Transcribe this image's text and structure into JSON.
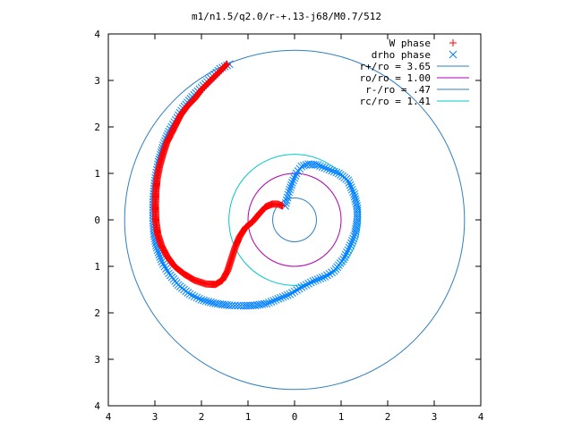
{
  "chart_data": {
    "type": "scatter",
    "title": "m1/n1.5/q2.0/r-+.13-j68/M0.7/512",
    "xlim": [
      -4,
      4
    ],
    "ylim": [
      -4,
      4
    ],
    "xticks": [
      -4,
      -3,
      -2,
      -1,
      0,
      1,
      2,
      3,
      4
    ],
    "yticks": [
      -4,
      -3,
      -2,
      -1,
      0,
      1,
      2,
      3,
      4
    ],
    "xtick_labels": [
      "4",
      "3",
      "2",
      "1",
      "0",
      "1",
      "2",
      "3",
      "4"
    ],
    "ytick_labels": [
      "4",
      "3",
      "2",
      "1",
      "0",
      "1",
      "2",
      "3",
      "4"
    ],
    "grid": false,
    "legend_position": "top-right",
    "series": [
      {
        "name": "W phase",
        "marker": "+",
        "color": "#ff0000",
        "points": [
          [
            -1.45,
            3.35
          ],
          [
            -1.55,
            3.25
          ],
          [
            -1.7,
            3.1
          ],
          [
            -1.85,
            2.95
          ],
          [
            -2.0,
            2.8
          ],
          [
            -2.15,
            2.6
          ],
          [
            -2.3,
            2.45
          ],
          [
            -2.45,
            2.25
          ],
          [
            -2.55,
            2.05
          ],
          [
            -2.65,
            1.85
          ],
          [
            -2.75,
            1.65
          ],
          [
            -2.83,
            1.4
          ],
          [
            -2.9,
            1.15
          ],
          [
            -2.95,
            0.9
          ],
          [
            -2.98,
            0.6
          ],
          [
            -2.99,
            0.3
          ],
          [
            -2.98,
            0.0
          ],
          [
            -2.94,
            -0.3
          ],
          [
            -2.86,
            -0.55
          ],
          [
            -2.74,
            -0.78
          ],
          [
            -2.58,
            -1.0
          ],
          [
            -2.38,
            -1.16
          ],
          [
            -2.15,
            -1.3
          ],
          [
            -1.9,
            -1.38
          ],
          [
            -1.7,
            -1.39
          ],
          [
            -1.55,
            -1.3
          ],
          [
            -1.44,
            -1.1
          ],
          [
            -1.36,
            -0.85
          ],
          [
            -1.28,
            -0.6
          ],
          [
            -1.18,
            -0.36
          ],
          [
            -1.05,
            -0.16
          ],
          [
            -0.9,
            -0.04
          ],
          [
            -0.75,
            0.14
          ],
          [
            -0.62,
            0.28
          ],
          [
            -0.48,
            0.34
          ],
          [
            -0.36,
            0.34
          ],
          [
            -0.26,
            0.3
          ]
        ]
      },
      {
        "name": "drho phase",
        "marker": "x",
        "color": "#0080ff",
        "points": [
          [
            -1.4,
            3.35
          ],
          [
            -1.6,
            3.25
          ],
          [
            -1.8,
            3.05
          ],
          [
            -2.0,
            2.85
          ],
          [
            -2.2,
            2.65
          ],
          [
            -2.4,
            2.4
          ],
          [
            -2.55,
            2.15
          ],
          [
            -2.7,
            1.9
          ],
          [
            -2.82,
            1.6
          ],
          [
            -2.92,
            1.25
          ],
          [
            -2.99,
            0.9
          ],
          [
            -3.03,
            0.5
          ],
          [
            -3.04,
            0.1
          ],
          [
            -3.02,
            -0.3
          ],
          [
            -2.96,
            -0.6
          ],
          [
            -2.85,
            -0.9
          ],
          [
            -2.7,
            -1.15
          ],
          [
            -2.5,
            -1.4
          ],
          [
            -2.25,
            -1.6
          ],
          [
            -2.0,
            -1.72
          ],
          [
            -1.7,
            -1.8
          ],
          [
            -1.4,
            -1.84
          ],
          [
            -1.1,
            -1.85
          ],
          [
            -0.85,
            -1.84
          ],
          [
            -0.6,
            -1.8
          ],
          [
            -0.35,
            -1.7
          ],
          [
            -0.1,
            -1.6
          ],
          [
            0.15,
            -1.45
          ],
          [
            0.4,
            -1.32
          ],
          [
            0.65,
            -1.22
          ],
          [
            0.85,
            -1.1
          ],
          [
            1.05,
            -0.85
          ],
          [
            1.2,
            -0.55
          ],
          [
            1.3,
            -0.3
          ],
          [
            1.35,
            0.0
          ],
          [
            1.35,
            0.25
          ],
          [
            1.28,
            0.55
          ],
          [
            1.15,
            0.85
          ],
          [
            0.95,
            1.0
          ],
          [
            0.7,
            1.1
          ],
          [
            0.5,
            1.18
          ],
          [
            0.3,
            1.2
          ],
          [
            0.15,
            1.15
          ],
          [
            0.04,
            1.0
          ],
          [
            -0.05,
            0.8
          ],
          [
            -0.12,
            0.6
          ],
          [
            -0.17,
            0.42
          ],
          [
            -0.2,
            0.3
          ]
        ]
      }
    ],
    "circles": [
      {
        "name": "r+/ro = 3.65",
        "r": 3.65,
        "color": "#2f7fc0"
      },
      {
        "name": "ro/ro = 1.00",
        "r": 1.0,
        "color": "#b000b0"
      },
      {
        "name": "r-/ro = .47",
        "r": 0.47,
        "color": "#2f7fc0"
      },
      {
        "name": "rc/ro = 1.41",
        "r": 1.41,
        "color": "#00c8c8"
      }
    ]
  }
}
